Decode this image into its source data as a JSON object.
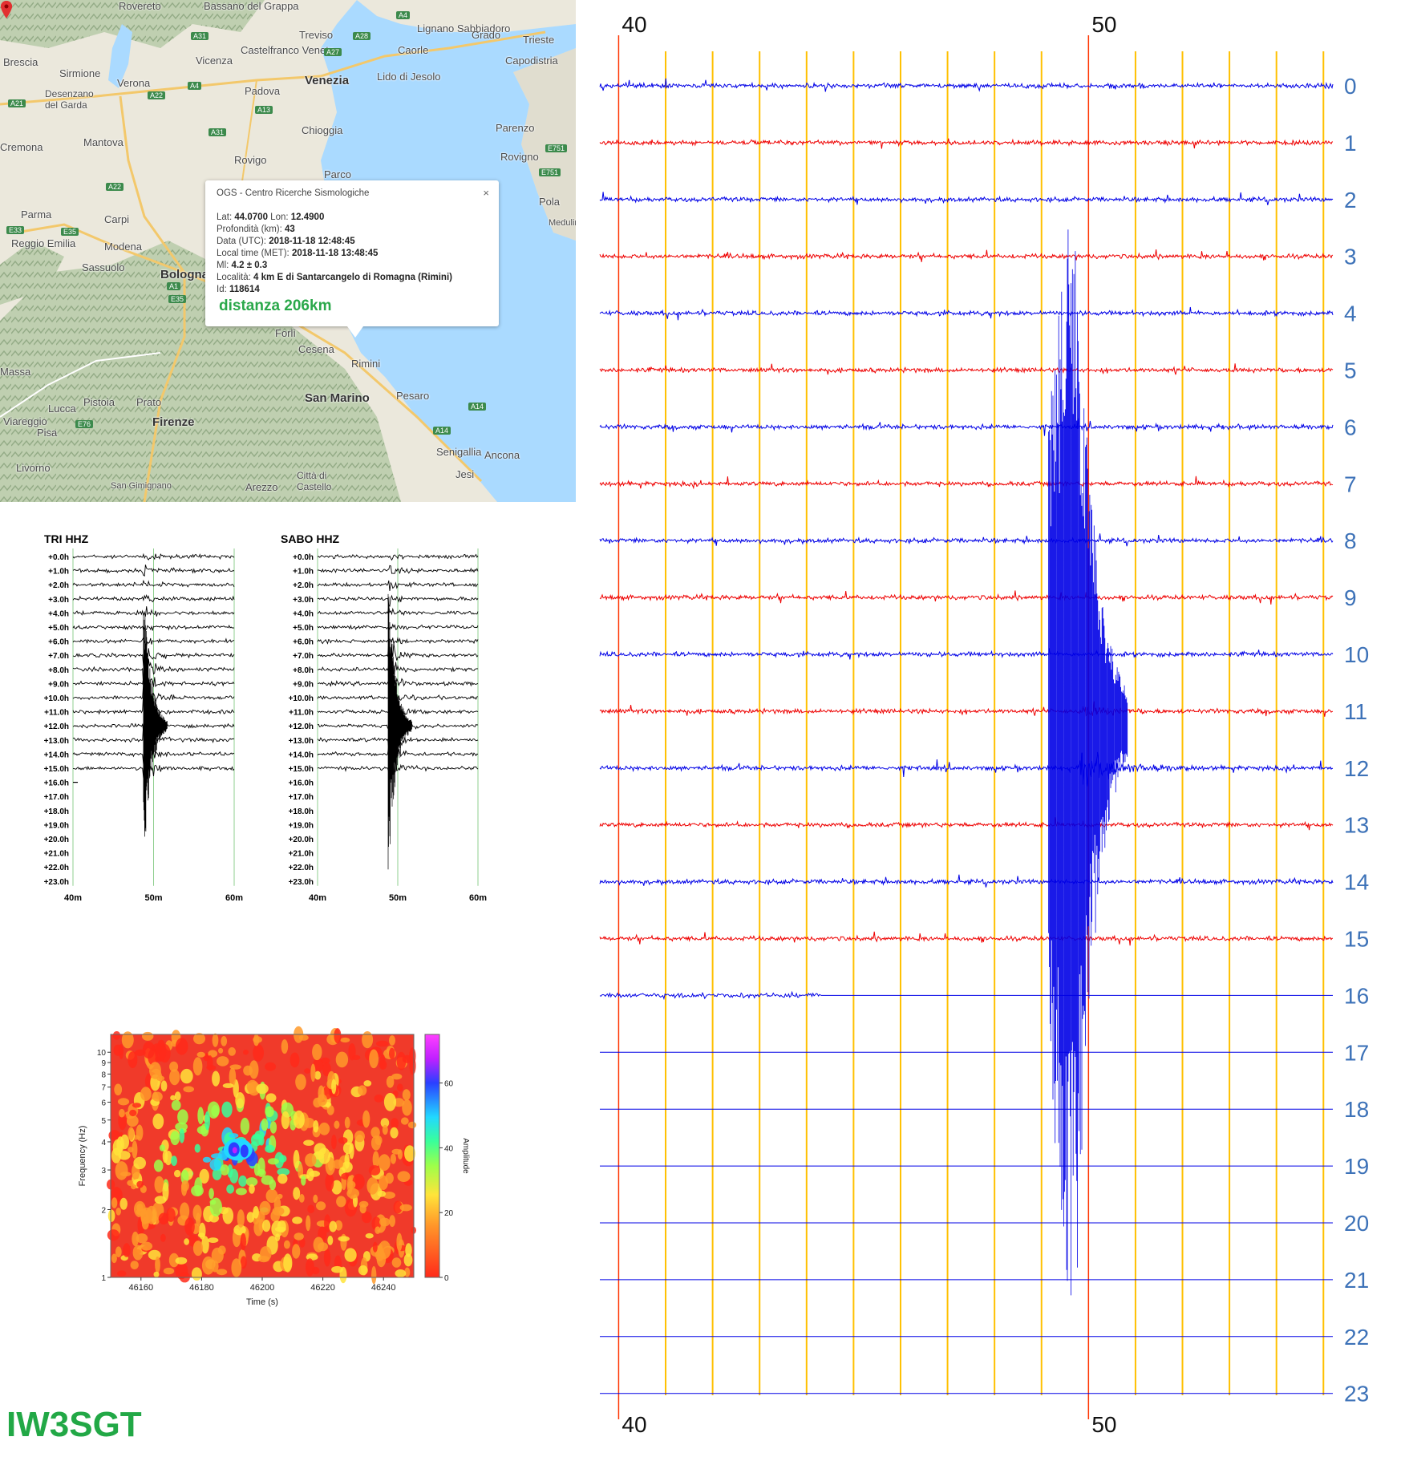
{
  "callsign": "IW3SGT",
  "map": {
    "cities": [
      {
        "name": "Rovereto",
        "cls": ""
      },
      {
        "name": "Bassano del Grappa",
        "cls": ""
      },
      {
        "name": "Treviso",
        "cls": ""
      },
      {
        "name": "Lignano Sabbiadoro",
        "cls": ""
      },
      {
        "name": "Grado",
        "cls": ""
      },
      {
        "name": "Trieste",
        "cls": ""
      },
      {
        "name": "Castelfranco Veneto",
        "cls": ""
      },
      {
        "name": "Caorle",
        "cls": ""
      },
      {
        "name": "Capodistria",
        "cls": ""
      },
      {
        "name": "Brescia",
        "cls": ""
      },
      {
        "name": "Vicenza",
        "cls": ""
      },
      {
        "name": "Sirmione",
        "cls": ""
      },
      {
        "name": "Verona",
        "cls": ""
      },
      {
        "name": "Padova",
        "cls": ""
      },
      {
        "name": "Venezia",
        "cls": "big"
      },
      {
        "name": "Lido di Jesolo",
        "cls": ""
      },
      {
        "name": "Desenzano del Garda",
        "cls": ""
      },
      {
        "name": "Chioggia",
        "cls": ""
      },
      {
        "name": "Parenzo",
        "cls": ""
      },
      {
        "name": "Mantova",
        "cls": ""
      },
      {
        "name": "Rovigo",
        "cls": ""
      },
      {
        "name": "Rovigno",
        "cls": ""
      },
      {
        "name": "Parco",
        "cls": ""
      },
      {
        "name": "Pola",
        "cls": ""
      },
      {
        "name": "Parma",
        "cls": ""
      },
      {
        "name": "Carpi",
        "cls": ""
      },
      {
        "name": "Reggio Emilia",
        "cls": ""
      },
      {
        "name": "Modena",
        "cls": ""
      },
      {
        "name": "Sassuolo",
        "cls": ""
      },
      {
        "name": "Bologna",
        "cls": "big"
      },
      {
        "name": "Forlì",
        "cls": ""
      },
      {
        "name": "Cesena",
        "cls": ""
      },
      {
        "name": "Rimini",
        "cls": ""
      },
      {
        "name": "San Marino",
        "cls": "big"
      },
      {
        "name": "Pesaro",
        "cls": ""
      },
      {
        "name": "Pistoia",
        "cls": ""
      },
      {
        "name": "Prato",
        "cls": ""
      },
      {
        "name": "Lucca",
        "cls": ""
      },
      {
        "name": "Viareggio",
        "cls": ""
      },
      {
        "name": "Pisa",
        "cls": ""
      },
      {
        "name": "Firenze",
        "cls": "big"
      },
      {
        "name": "Senigallia",
        "cls": ""
      },
      {
        "name": "Ancona",
        "cls": ""
      },
      {
        "name": "Livorno",
        "cls": ""
      },
      {
        "name": "Jesi",
        "cls": ""
      },
      {
        "name": "San Gimignano",
        "cls": ""
      },
      {
        "name": "Arezzo",
        "cls": ""
      },
      {
        "name": "Città di Castello",
        "cls": ""
      },
      {
        "name": "Medulin",
        "cls": ""
      },
      {
        "name": "Massa",
        "cls": ""
      },
      {
        "name": "Cremona",
        "cls": ""
      }
    ],
    "roads": [
      "A31",
      "A4",
      "A27",
      "A28",
      "A31",
      "A4",
      "A13",
      "A22",
      "A21",
      "E751",
      "E751",
      "A22",
      "E35",
      "E33",
      "A1",
      "E35",
      "A14",
      "E76",
      "A14"
    ],
    "popup": {
      "org": "OGS - Centro Ricerche Sismologiche",
      "lat_label": "Lat:",
      "lat": "44.0700",
      "lon_label": "Lon:",
      "lon": "12.4900",
      "depth_label": "Profondità (km):",
      "depth": "43",
      "utc_label": "Data (UTC):",
      "utc": "2018-11-18 12:48:45",
      "local_label": "Local time (MET):",
      "local": "2018-11-18 13:48:45",
      "ml_label": "Ml:",
      "ml": "4.2 ± 0.3",
      "loc_label": "Località:",
      "loc": "4 km E di Santarcangelo di Romagna (Rimini)",
      "id_label": "Id:",
      "id": "118614",
      "distance": "distanza 206km",
      "close": "×"
    }
  },
  "chart_data": [
    {
      "type": "line",
      "title": "TRI HHZ",
      "rows": [
        "+0.0h",
        "+1.0h",
        "+2.0h",
        "+3.0h",
        "+4.0h",
        "+5.0h",
        "+6.0h",
        "+7.0h",
        "+8.0h",
        "+9.0h",
        "+10.0h",
        "+11.0h",
        "+12.0h",
        "+13.0h",
        "+14.0h",
        "+15.0h",
        "+16.0h",
        "+17.0h",
        "+18.0h",
        "+19.0h",
        "+20.0h",
        "+21.0h",
        "+22.0h",
        "+23.0h"
      ],
      "x_ticks": [
        "40m",
        "50m",
        "60m"
      ],
      "xlim": [
        40,
        60
      ],
      "event_minute": 48.75,
      "recorded_rows": 16
    },
    {
      "type": "line",
      "title": "SABO HHZ",
      "rows": [
        "+0.0h",
        "+1.0h",
        "+2.0h",
        "+3.0h",
        "+4.0h",
        "+5.0h",
        "+6.0h",
        "+7.0h",
        "+8.0h",
        "+9.0h",
        "+10.0h",
        "+11.0h",
        "+12.0h",
        "+13.0h",
        "+14.0h",
        "+15.0h",
        "+16.0h",
        "+17.0h",
        "+18.0h",
        "+19.0h",
        "+20.0h",
        "+21.0h",
        "+22.0h",
        "+23.0h"
      ],
      "x_ticks": [
        "40m",
        "50m",
        "60m"
      ],
      "xlim": [
        40,
        60
      ],
      "event_minute": 48.8,
      "recorded_rows": 16
    },
    {
      "type": "heatmap",
      "xlabel": "Time (s)",
      "ylabel": "Frequency (Hz)",
      "colorbar_label": "Amplitude",
      "x_ticks": [
        46160,
        46180,
        46200,
        46220,
        46240
      ],
      "xlim": [
        46150,
        46250
      ],
      "y_ticks": [
        1,
        2,
        3,
        4,
        5,
        6,
        7,
        8,
        9,
        10
      ],
      "y_scale": "log",
      "ylim": [
        1,
        12
      ],
      "colorbar_ticks": [
        0,
        20,
        40,
        60
      ],
      "clim": [
        0,
        75
      ],
      "hotspot": {
        "time": 46192,
        "freq": 3.7,
        "amplitude": 70
      }
    },
    {
      "type": "line",
      "title": "",
      "x_ticks": [
        "40",
        "50"
      ],
      "xlim": [
        39.6,
        55.2
      ],
      "rows": [
        "0",
        "1",
        "2",
        "3",
        "4",
        "5",
        "6",
        "7",
        "8",
        "9",
        "10",
        "11",
        "12",
        "13",
        "14",
        "15",
        "16",
        "17",
        "18",
        "19",
        "20",
        "21",
        "22",
        "23"
      ],
      "row_colors": [
        "#0000e6",
        "#ee0000"
      ],
      "label_color": "#3d72b8",
      "grid_color": "#ffc000",
      "marker_color": "#ff3300",
      "event_minute": 49.8,
      "recorded_rows": 16,
      "partial_row_end_minute": 44.3
    }
  ]
}
